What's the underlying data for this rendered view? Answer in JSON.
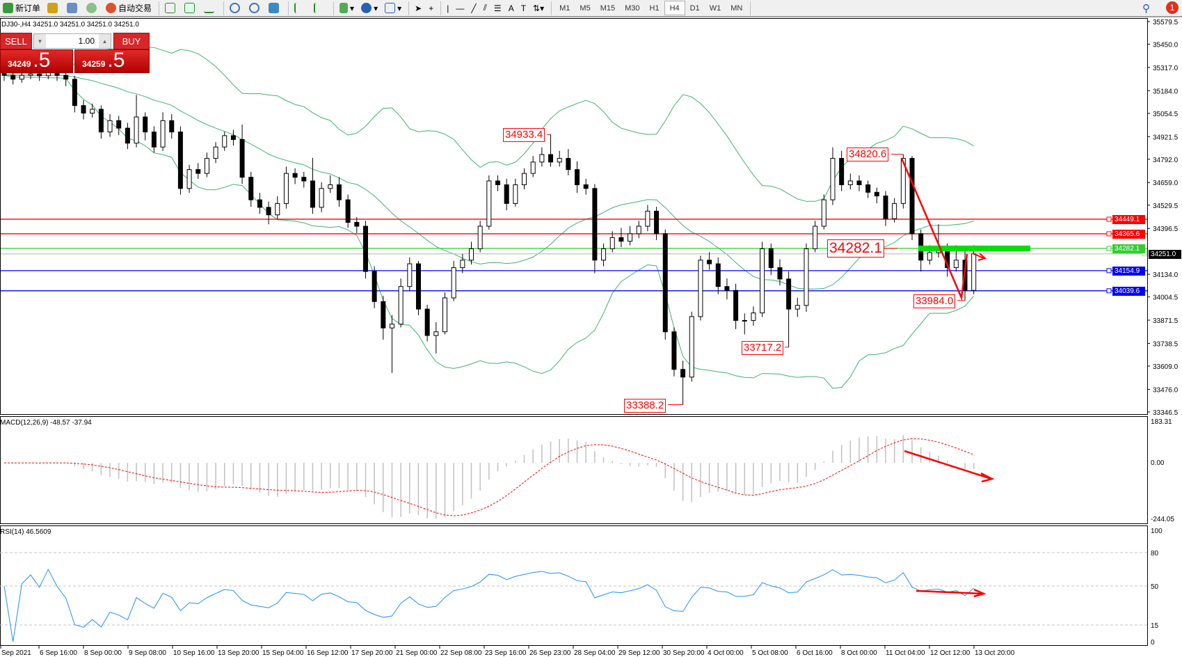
{
  "toolbar": {
    "new_order": "新订单",
    "auto_trading": "自动交易",
    "timeframes": [
      "M1",
      "M5",
      "M15",
      "M30",
      "H1",
      "H4",
      "D1",
      "W1",
      "MN"
    ],
    "active_timeframe": "H4",
    "notification_count": "1",
    "icons": [
      "new-order-icon",
      "meta-editor-icon",
      "navigator-icon",
      "signals-icon",
      "auto-trading-icon",
      "bar-chart-icon",
      "candlestick-icon",
      "line-chart-icon",
      "zoom-in-icon",
      "zoom-out-icon",
      "tile-windows-icon",
      "autoscroll-icon",
      "chart-shift-icon",
      "indicators-icon",
      "periods-icon",
      "templates-icon",
      "cursor-icon",
      "crosshair-icon",
      "vertical-line-icon",
      "horizontal-line-icon",
      "trendline-icon",
      "equidistant-channel-icon",
      "fibonacci-icon",
      "text-icon",
      "text-label-icon",
      "arrows-icon",
      "search-icon",
      "notification-icon"
    ]
  },
  "chart_header": "DJ30-,H4  34251.0 34251.0 34251.0 34251.0",
  "one_click": {
    "sell": "SELL",
    "buy": "BUY",
    "lot": "1.00",
    "sell_price_main": "34249",
    "sell_price_frac": ".5",
    "buy_price_main": "34259",
    "buy_price_frac": ".5"
  },
  "colors": {
    "bull_body": "#ffffff",
    "bear_body": "#000000",
    "bands": "#3cb371",
    "macd_hist": "#c0c0c0",
    "macd_signal": "#ff0000",
    "rsi": "#1e90ff",
    "sell_buy": "#d8262a"
  },
  "chart_data": {
    "type": "candlestick",
    "symbol": "DJ30-",
    "timeframe": "H4",
    "price_axis_ticks": [
      35579.5,
      35450.0,
      35317.0,
      35184.0,
      35054.5,
      34921.5,
      34792.0,
      34659.0,
      34529.5,
      34396.5,
      34134.0,
      34004.5,
      33871.5,
      33738.5,
      33609.0,
      33476.0,
      33346.5
    ],
    "ylim": [
      33346.5,
      35579.5
    ],
    "time_axis_ticks": [
      "Sep 2021",
      "6 Sep 16:00",
      "8 Sep 00:00",
      "9 Sep 08:00",
      "10 Sep 16:00",
      "13 Sep 20:00",
      "15 Sep 04:00",
      "16 Sep 12:00",
      "17 Sep 20:00",
      "21 Sep 00:00",
      "22 Sep 08:00",
      "23 Sep 16:00",
      "26 Sep 23:00",
      "28 Sep 04:00",
      "29 Sep 12:00",
      "30 Sep 20:00",
      "4 Oct 00:00",
      "5 Oct 08:00",
      "6 Oct 16:00",
      "8 Oct 00:00",
      "11 Oct 04:00",
      "12 Oct 12:00",
      "13 Oct 20:00"
    ],
    "candles_ohlc": [
      [
        35290,
        35330,
        35240,
        35272
      ],
      [
        35272,
        35300,
        35220,
        35250
      ],
      [
        35250,
        35310,
        35230,
        35272
      ],
      [
        35272,
        35320,
        35250,
        35280
      ],
      [
        35280,
        35310,
        35240,
        35270
      ],
      [
        35270,
        35330,
        35250,
        35293
      ],
      [
        35293,
        35320,
        35240,
        35272
      ],
      [
        35272,
        35290,
        35210,
        35250
      ],
      [
        35250,
        35270,
        35060,
        35099
      ],
      [
        35099,
        35130,
        35020,
        35056
      ],
      [
        35056,
        35110,
        35030,
        35078
      ],
      [
        35078,
        35100,
        34910,
        34948
      ],
      [
        34948,
        35050,
        34920,
        35013
      ],
      [
        35013,
        35040,
        34930,
        34970
      ],
      [
        34970,
        35000,
        34850,
        34884
      ],
      [
        34884,
        35160,
        34860,
        35034
      ],
      [
        35034,
        35060,
        34900,
        34948
      ],
      [
        34948,
        34980,
        34830,
        34862
      ],
      [
        34862,
        35060,
        34840,
        35013
      ],
      [
        35013,
        35050,
        34910,
        34948
      ],
      [
        34948,
        34980,
        34590,
        34625
      ],
      [
        34625,
        34760,
        34600,
        34733
      ],
      [
        34733,
        34770,
        34680,
        34711
      ],
      [
        34711,
        34830,
        34690,
        34797
      ],
      [
        34797,
        34890,
        34770,
        34862
      ],
      [
        34862,
        34950,
        34840,
        34927
      ],
      [
        34927,
        34960,
        34870,
        34905
      ],
      [
        34905,
        34990,
        34650,
        34689
      ],
      [
        34689,
        34720,
        34520,
        34560
      ],
      [
        34560,
        34600,
        34480,
        34517
      ],
      [
        34517,
        34550,
        34420,
        34474
      ],
      [
        34474,
        34580,
        34450,
        34539
      ],
      [
        34539,
        34750,
        34510,
        34711
      ],
      [
        34711,
        34740,
        34650,
        34689
      ],
      [
        34689,
        34720,
        34630,
        34668
      ],
      [
        34668,
        34800,
        34480,
        34517
      ],
      [
        34517,
        34660,
        34490,
        34625
      ],
      [
        34625,
        34700,
        34600,
        34646
      ],
      [
        34646,
        34690,
        34520,
        34560
      ],
      [
        34560,
        34590,
        34400,
        34431
      ],
      [
        34431,
        34460,
        34370,
        34409
      ],
      [
        34409,
        34440,
        34110,
        34150
      ],
      [
        34150,
        34180,
        33940,
        33978
      ],
      [
        33978,
        34010,
        33760,
        33827
      ],
      [
        33827,
        33900,
        33570,
        33849
      ],
      [
        33849,
        34110,
        33830,
        34064
      ],
      [
        34064,
        34230,
        34040,
        34194
      ],
      [
        34194,
        34210,
        33900,
        33935
      ],
      [
        33935,
        33960,
        33750,
        33784
      ],
      [
        33784,
        33860,
        33680,
        33805
      ],
      [
        33805,
        34030,
        33790,
        33999
      ],
      [
        33999,
        34210,
        33980,
        34172
      ],
      [
        34172,
        34250,
        34140,
        34215
      ],
      [
        34215,
        34320,
        34190,
        34280
      ],
      [
        34280,
        34440,
        34260,
        34409
      ],
      [
        34409,
        34700,
        34390,
        34668
      ],
      [
        34668,
        34700,
        34610,
        34646
      ],
      [
        34646,
        34680,
        34500,
        34539
      ],
      [
        34539,
        34680,
        34520,
        34646
      ],
      [
        34646,
        34740,
        34620,
        34711
      ],
      [
        34711,
        34810,
        34690,
        34776
      ],
      [
        34776,
        34860,
        34750,
        34819
      ],
      [
        34819,
        34933.4,
        34750,
        34776
      ],
      [
        34776,
        34840,
        34750,
        34797
      ],
      [
        34797,
        34850,
        34700,
        34733
      ],
      [
        34733,
        34780,
        34600,
        34646
      ],
      [
        34646,
        34680,
        34590,
        34625
      ],
      [
        34625,
        34650,
        34140,
        34215
      ],
      [
        34215,
        34310,
        34180,
        34280
      ],
      [
        34280,
        34380,
        34260,
        34344
      ],
      [
        34344,
        34400,
        34290,
        34323
      ],
      [
        34323,
        34410,
        34300,
        34366
      ],
      [
        34366,
        34440,
        34340,
        34409
      ],
      [
        34409,
        34530,
        34380,
        34495
      ],
      [
        34495,
        34520,
        34330,
        34366
      ],
      [
        34366,
        34390,
        33760,
        33805
      ],
      [
        33805,
        33830,
        33550,
        33590
      ],
      [
        33590,
        33640,
        33388.2,
        33546
      ],
      [
        33546,
        33920,
        33520,
        33892
      ],
      [
        33892,
        34240,
        33870,
        34215
      ],
      [
        34215,
        34260,
        34160,
        34194
      ],
      [
        34194,
        34230,
        34020,
        34064
      ],
      [
        34064,
        34110,
        33990,
        34042
      ],
      [
        34042,
        34080,
        33820,
        33870
      ],
      [
        33870,
        33910,
        33790,
        33870
      ],
      [
        33870,
        33950,
        33840,
        33913
      ],
      [
        33913,
        34320,
        33890,
        34280
      ],
      [
        34280,
        34310,
        34130,
        34172
      ],
      [
        34172,
        34220,
        34070,
        34107
      ],
      [
        34107,
        34150,
        33717.2,
        33935
      ],
      [
        33935,
        34000,
        33890,
        33956
      ],
      [
        33956,
        34310,
        33920,
        34280
      ],
      [
        34280,
        34440,
        34260,
        34409
      ],
      [
        34409,
        34590,
        34390,
        34560
      ],
      [
        34560,
        34860,
        34530,
        34797
      ],
      [
        34797,
        34840,
        34610,
        34646
      ],
      [
        34646,
        34710,
        34620,
        34668
      ],
      [
        34668,
        34700,
        34610,
        34646
      ],
      [
        34646,
        34670,
        34570,
        34603
      ],
      [
        34603,
        34630,
        34540,
        34582
      ],
      [
        34582,
        34610,
        34410,
        34452
      ],
      [
        34452,
        34570,
        34430,
        34539
      ],
      [
        34539,
        34820.6,
        34510,
        34797
      ],
      [
        34797,
        34810,
        34330,
        34366
      ],
      [
        34366,
        34390,
        34150,
        34215
      ],
      [
        34215,
        34300,
        34190,
        34258
      ],
      [
        34258,
        34420,
        34230,
        34280
      ],
      [
        34280,
        34310,
        34120,
        34172
      ],
      [
        34172,
        34300,
        34150,
        34215
      ],
      [
        34215,
        34290,
        33984.0,
        34042
      ],
      [
        34042,
        34300,
        34020,
        34251
      ]
    ],
    "indicators": {
      "bollinger_bands": true,
      "macd_label": "MACD(12,26,9) -48.57 -37.94",
      "macd_ticks": [
        "183.31",
        "0.00",
        "-244.05"
      ],
      "macd_range": [
        -244.05,
        183.31
      ],
      "rsi_label": "RSI(14) 46.5609",
      "rsi_ticks": [
        "100",
        "80",
        "50",
        "15",
        "0"
      ],
      "rsi_levels": [
        80,
        50,
        15
      ]
    },
    "horizontal_lines": [
      {
        "price": "34449.1",
        "color": "#ff0000"
      },
      {
        "price": "34365.6",
        "color": "#ff0000"
      },
      {
        "price": "34282.1",
        "color": "#32cd32"
      },
      {
        "price": "34251.0",
        "color": "#c0c0c0",
        "tag": "#000000"
      },
      {
        "price": "34154.9",
        "color": "#0000ff"
      },
      {
        "price": "34039.6",
        "color": "#0000ff"
      }
    ],
    "annotations": [
      "34933.4",
      "34820.6",
      "33388.2",
      "33717.2",
      "33984.0",
      "34282.1"
    ]
  }
}
